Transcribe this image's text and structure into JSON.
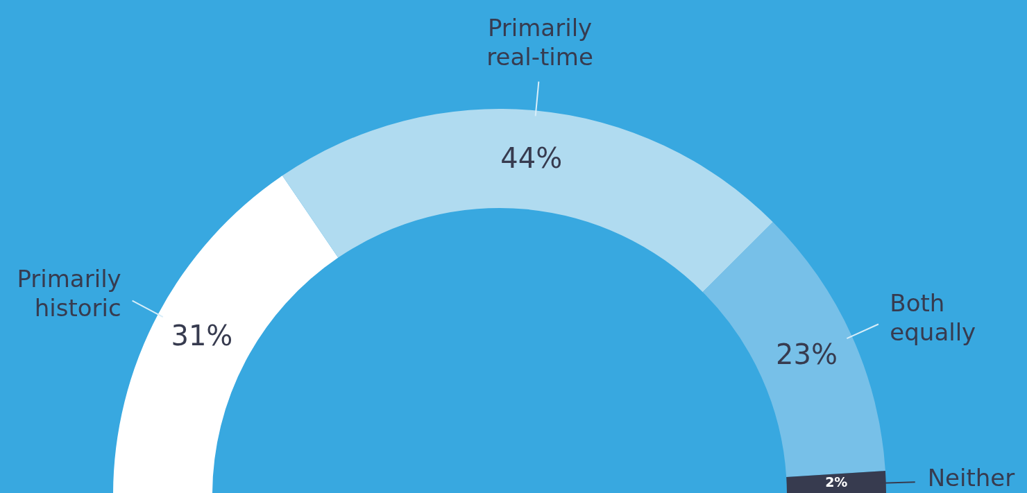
{
  "chart_data": {
    "type": "donut",
    "categories": [
      "Primarily historic",
      "Primarily real-time",
      "Both equally",
      "Neither"
    ],
    "values": [
      31,
      44,
      23,
      2
    ],
    "colors": [
      "#ffffff",
      "#b0dbf0",
      "#77c0e8",
      "#373b4f"
    ],
    "value_labels": [
      "31%",
      "44%",
      "23%",
      "2%"
    ]
  }
}
